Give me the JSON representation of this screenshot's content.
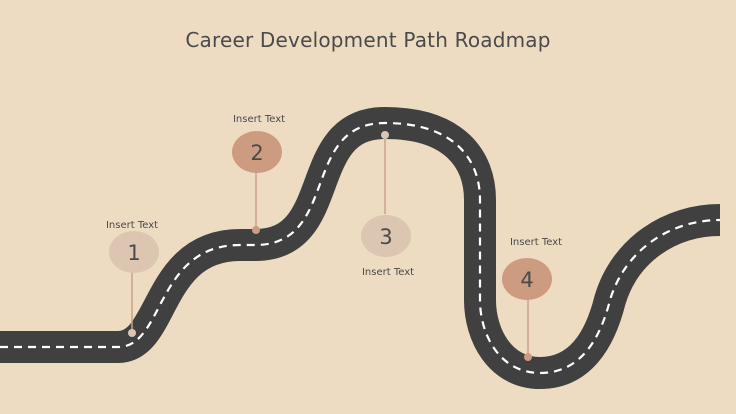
{
  "title": "Career Development Path Roadmap",
  "milestones": [
    {
      "number": "1",
      "label": "Insert Text"
    },
    {
      "number": "2",
      "label": "Insert Text"
    },
    {
      "number": "3",
      "label": "Insert Text"
    },
    {
      "number": "4",
      "label": "Insert Text"
    }
  ],
  "colors": {
    "background": "#eddcc2",
    "road": "#404040",
    "road_marking": "#ffffff",
    "marker_light": "#dcc6b1",
    "marker_dark": "#cc9b80",
    "pin_line": "#c9a28c",
    "text": "#4a4a4a"
  }
}
